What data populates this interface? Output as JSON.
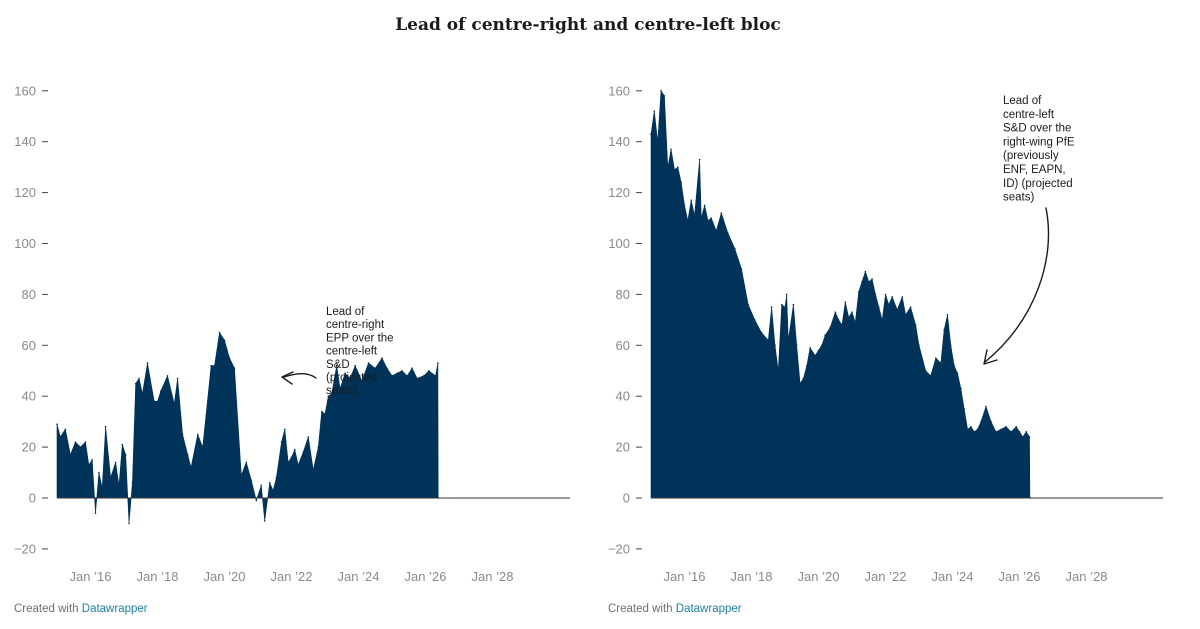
{
  "title": "Lead of centre-right and centre-left bloc",
  "credit": {
    "prefix": "Created with",
    "link": "Datawrapper"
  },
  "colors": {
    "area": "#003359",
    "axis": "#333333",
    "tick_text": "#8a8a8a",
    "link": "#1d81a2"
  },
  "chart_data": [
    {
      "type": "area",
      "title": "",
      "annotation": [
        "Lead of",
        "centre-right",
        "EPP over the",
        "centre-left",
        "S&D",
        "(projected",
        "seats)"
      ],
      "y_ticks": [
        160,
        140,
        120,
        100,
        80,
        60,
        40,
        20,
        0,
        -20
      ],
      "y_tick_labels": [
        "160",
        "140",
        "120",
        "100",
        "80",
        "60",
        "40",
        "20",
        "0",
        "−20"
      ],
      "x_ticks": [
        2016,
        2018,
        2020,
        2022,
        2024,
        2026,
        2028
      ],
      "x_tick_labels": [
        "Jan ’16",
        "Jan ’18",
        "Jan ’20",
        "Jan ’22",
        "Jan ’24",
        "Jan ’26",
        "Jan ’28"
      ],
      "xlim": [
        2015.0,
        2030.3
      ],
      "ylim": [
        -20,
        160
      ],
      "grid": false,
      "x": [
        2015.0,
        2015.1,
        2015.25,
        2015.4,
        2015.55,
        2015.7,
        2015.85,
        2015.95,
        2016.05,
        2016.15,
        2016.25,
        2016.35,
        2016.45,
        2016.6,
        2016.75,
        2016.85,
        2016.95,
        2017.05,
        2017.15,
        2017.25,
        2017.35,
        2017.45,
        2017.55,
        2017.7,
        2017.9,
        2018.0,
        2018.1,
        2018.3,
        2018.5,
        2018.6,
        2018.75,
        2018.9,
        2019.0,
        2019.2,
        2019.35,
        2019.6,
        2019.7,
        2019.85,
        2020.0,
        2020.15,
        2020.3,
        2020.5,
        2020.65,
        2020.8,
        2020.95,
        2021.1,
        2021.2,
        2021.35,
        2021.45,
        2021.55,
        2021.7,
        2021.8,
        2021.9,
        2022.0,
        2022.1,
        2022.2,
        2022.35,
        2022.5,
        2022.65,
        2022.8,
        2022.9,
        2023.0,
        2023.1,
        2023.2,
        2023.35,
        2023.45,
        2023.6,
        2023.75,
        2023.9,
        2024.1,
        2024.3,
        2024.5,
        2024.7,
        2024.85,
        2025.0,
        2025.15,
        2025.3,
        2025.45,
        2025.6,
        2025.75,
        2025.95,
        2026.1,
        2026.3,
        2026.37,
        2026.38
      ],
      "values": [
        29,
        24,
        27,
        17,
        22,
        20,
        22,
        13,
        15,
        -6,
        10,
        4,
        28,
        8,
        14,
        5,
        21,
        17,
        -10,
        6,
        45,
        47,
        41,
        53,
        38,
        38,
        42,
        48,
        37,
        47,
        25,
        17,
        12,
        25,
        20,
        52,
        52,
        65,
        62,
        55,
        51,
        9,
        14,
        7,
        -1,
        5,
        -9,
        6,
        3,
        8,
        22,
        27,
        14,
        16,
        19,
        13,
        18,
        24,
        11,
        20,
        34,
        33,
        40,
        41,
        52,
        43,
        49,
        47,
        52,
        46,
        53,
        51,
        55,
        51,
        48,
        49,
        50,
        48,
        51,
        47,
        48,
        50,
        48,
        53,
        0
      ]
    },
    {
      "type": "area",
      "title": "",
      "annotation": [
        "Lead of",
        "centre-left",
        "S&D over the",
        "right-wing PfE",
        "(previously",
        "ENF, EAPN,",
        "ID) (projected",
        "seats)"
      ],
      "y_ticks": [
        160,
        140,
        120,
        100,
        80,
        60,
        40,
        20,
        0,
        -20
      ],
      "y_tick_labels": [
        "160",
        "140",
        "120",
        "100",
        "80",
        "60",
        "40",
        "20",
        "0",
        "−20"
      ],
      "x_ticks": [
        2016,
        2018,
        2020,
        2022,
        2024,
        2026,
        2028
      ],
      "x_tick_labels": [
        "Jan ’16",
        "Jan ’18",
        "Jan ’20",
        "Jan ’22",
        "Jan ’24",
        "Jan ’26",
        "Jan ’28"
      ],
      "xlim": [
        2015.0,
        2030.3
      ],
      "ylim": [
        -20,
        160
      ],
      "grid": false,
      "x": [
        2015.0,
        2015.1,
        2015.2,
        2015.3,
        2015.4,
        2015.5,
        2015.6,
        2015.7,
        2015.8,
        2015.9,
        2016.0,
        2016.1,
        2016.2,
        2016.3,
        2016.45,
        2016.5,
        2016.6,
        2016.7,
        2016.8,
        2016.95,
        2017.1,
        2017.3,
        2017.5,
        2017.7,
        2017.9,
        2018.1,
        2018.3,
        2018.5,
        2018.6,
        2018.7,
        2018.8,
        2018.9,
        2019.0,
        2019.05,
        2019.1,
        2019.25,
        2019.35,
        2019.45,
        2019.55,
        2019.65,
        2019.75,
        2019.9,
        2020.0,
        2020.1,
        2020.2,
        2020.35,
        2020.5,
        2020.6,
        2020.7,
        2020.8,
        2020.9,
        2021.0,
        2021.1,
        2021.2,
        2021.3,
        2021.4,
        2021.5,
        2021.6,
        2021.7,
        2021.8,
        2021.9,
        2022.0,
        2022.1,
        2022.2,
        2022.35,
        2022.5,
        2022.6,
        2022.75,
        2022.9,
        2023.0,
        2023.2,
        2023.35,
        2023.5,
        2023.65,
        2023.75,
        2023.85,
        2023.95,
        2024.05,
        2024.15,
        2024.25,
        2024.35,
        2024.45,
        2024.55,
        2024.65,
        2024.75,
        2024.85,
        2025.0,
        2025.15,
        2025.3,
        2025.45,
        2025.6,
        2025.75,
        2025.9,
        2026.0,
        2026.1,
        2026.2,
        2026.3,
        2026.31
      ],
      "values": [
        143,
        152,
        140,
        160,
        158,
        130,
        137,
        129,
        130,
        124,
        115,
        109,
        117,
        111,
        133,
        110,
        115,
        109,
        110,
        105,
        112,
        104,
        98,
        90,
        76,
        70,
        65,
        62,
        75,
        60,
        50,
        76,
        75,
        80,
        62,
        76,
        60,
        45,
        47,
        52,
        59,
        56,
        58,
        60,
        64,
        67,
        73,
        70,
        68,
        77,
        71,
        73,
        69,
        81,
        85,
        89,
        85,
        86,
        80,
        75,
        70,
        80,
        76,
        79,
        74,
        79,
        72,
        75,
        68,
        60,
        50,
        48,
        55,
        53,
        66,
        72,
        60,
        52,
        49,
        43,
        35,
        27,
        28,
        26,
        27,
        30,
        36,
        30,
        26,
        27,
        28,
        26,
        28,
        26,
        24,
        26,
        24,
        0
      ]
    }
  ]
}
